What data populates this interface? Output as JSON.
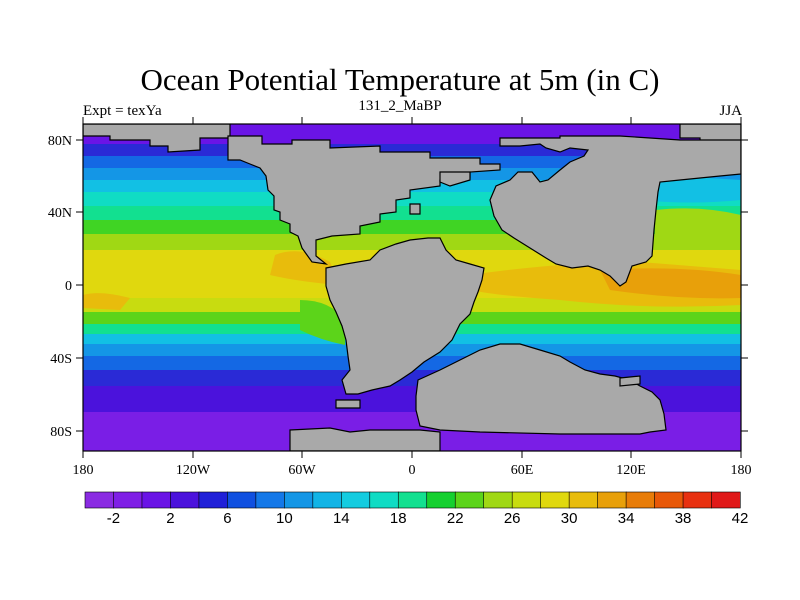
{
  "title": "Ocean Potential Temperature at 5m (in C)",
  "left_label": "Expt = texYa",
  "center_label": "131_2_MaBP",
  "right_label": "JJA",
  "lat_ticks": [
    "80N",
    "40N",
    "0",
    "40S",
    "80S"
  ],
  "lon_ticks": [
    "180",
    "120W",
    "60W",
    "0",
    "60E",
    "120E",
    "180"
  ],
  "colorbar": {
    "labels": [
      "-2",
      "2",
      "6",
      "10",
      "14",
      "18",
      "22",
      "26",
      "30",
      "34",
      "38",
      "42"
    ],
    "colors": [
      "#8a2be2",
      "#7f1fe6",
      "#6a14e6",
      "#4b12dc",
      "#2020d8",
      "#1050e0",
      "#1478e8",
      "#1496e6",
      "#12b4e6",
      "#14cce0",
      "#10dcc4",
      "#12e090",
      "#16d030",
      "#5cd41a",
      "#a0d814",
      "#c8dc10",
      "#e0d80e",
      "#e8bc0c",
      "#e8a00a",
      "#e87c08",
      "#e85808",
      "#e83010",
      "#e01818"
    ]
  },
  "colors": {
    "land": "#a9a9a9",
    "frame": "#000000"
  }
}
